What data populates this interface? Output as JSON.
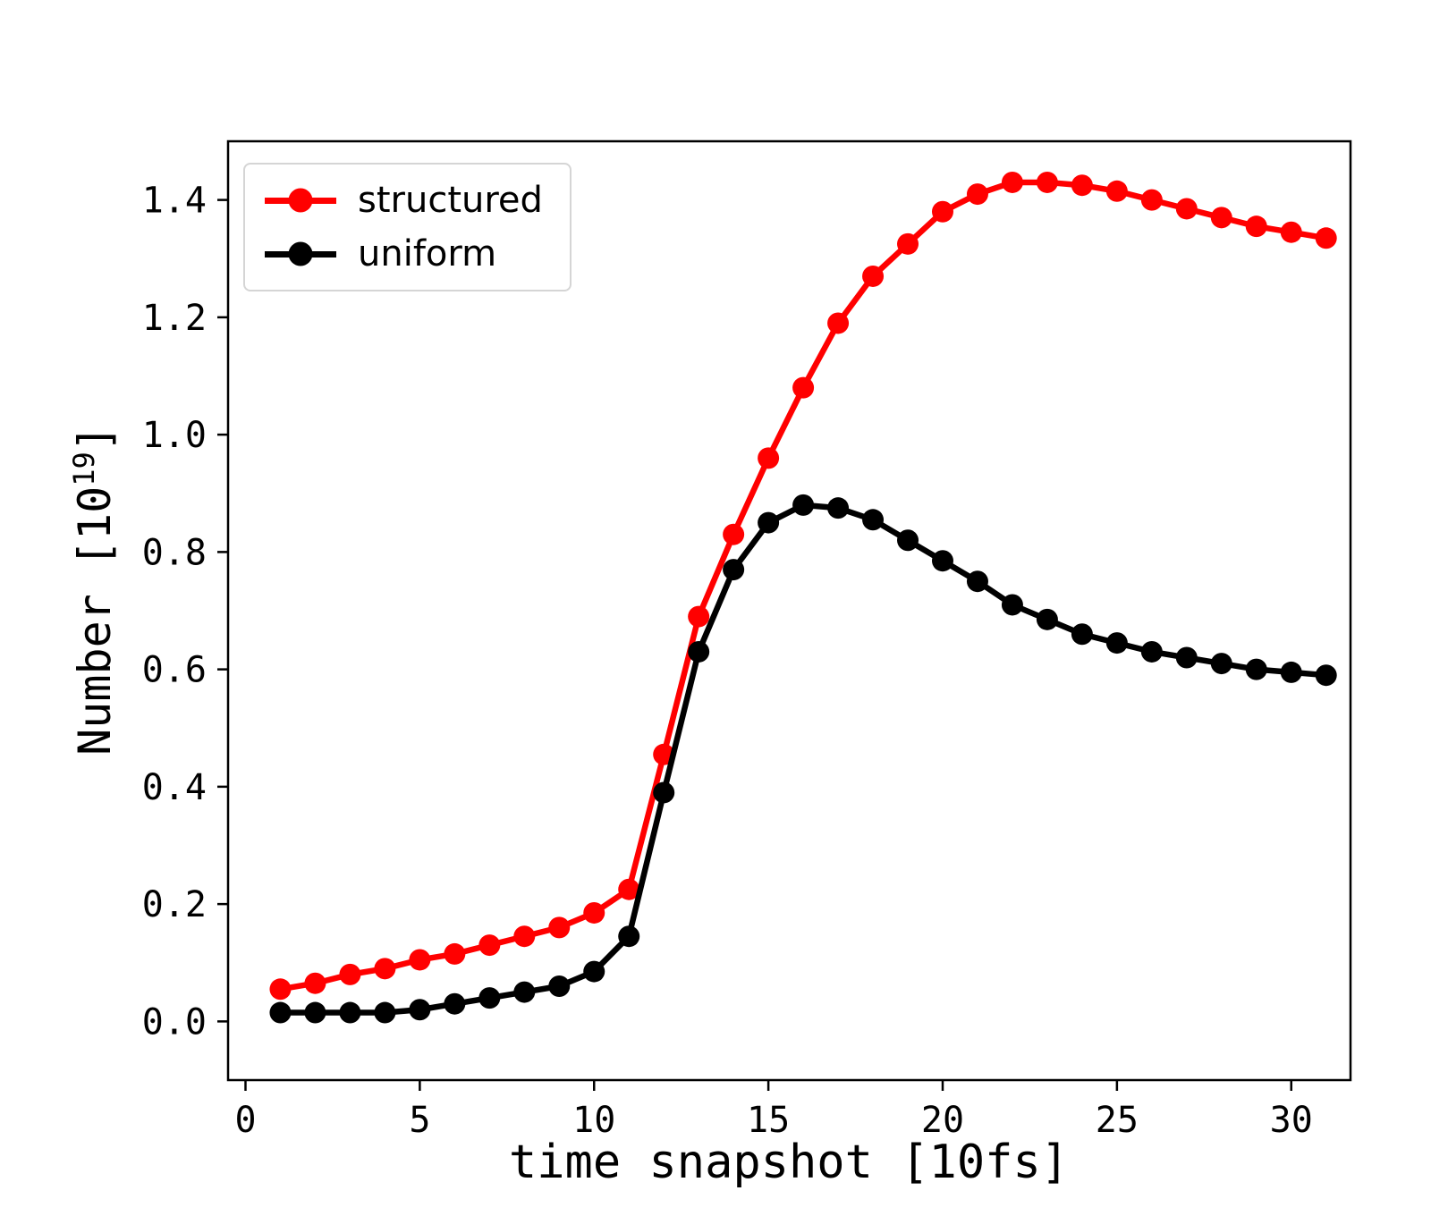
{
  "chart_data": {
    "type": "line",
    "title": "",
    "xlabel": "time snapshot [10fs]",
    "ylabel": "Number [10^19]",
    "ylabel_parts": {
      "base": "Number [10",
      "sup": "19",
      "close": "]"
    },
    "xlim": [
      -0.5,
      31.7
    ],
    "ylim": [
      -0.1,
      1.5
    ],
    "xticks": [
      0,
      5,
      10,
      15,
      20,
      25,
      30
    ],
    "yticks": [
      "0.0",
      "0.2",
      "0.4",
      "0.6",
      "0.8",
      "1.0",
      "1.2",
      "1.4"
    ],
    "grid": false,
    "legend_position": "upper-left",
    "x": [
      1,
      2,
      3,
      4,
      5,
      6,
      7,
      8,
      9,
      10,
      11,
      12,
      13,
      14,
      15,
      16,
      17,
      18,
      19,
      20,
      21,
      22,
      23,
      24,
      25,
      26,
      27,
      28,
      29,
      30,
      31
    ],
    "series": [
      {
        "name": "structured",
        "color": "#ff0000",
        "values": [
          0.055,
          0.065,
          0.08,
          0.09,
          0.105,
          0.115,
          0.13,
          0.145,
          0.16,
          0.185,
          0.225,
          0.455,
          0.69,
          0.83,
          0.96,
          1.08,
          1.19,
          1.27,
          1.325,
          1.38,
          1.41,
          1.43,
          1.43,
          1.425,
          1.415,
          1.4,
          1.385,
          1.37,
          1.355,
          1.345,
          1.335
        ]
      },
      {
        "name": "uniform",
        "color": "#000000",
        "values": [
          0.015,
          0.015,
          0.015,
          0.015,
          0.02,
          0.03,
          0.04,
          0.05,
          0.06,
          0.085,
          0.145,
          0.39,
          0.63,
          0.77,
          0.85,
          0.88,
          0.875,
          0.855,
          0.82,
          0.785,
          0.75,
          0.71,
          0.685,
          0.66,
          0.645,
          0.63,
          0.62,
          0.61,
          0.6,
          0.595,
          0.59
        ]
      }
    ]
  }
}
